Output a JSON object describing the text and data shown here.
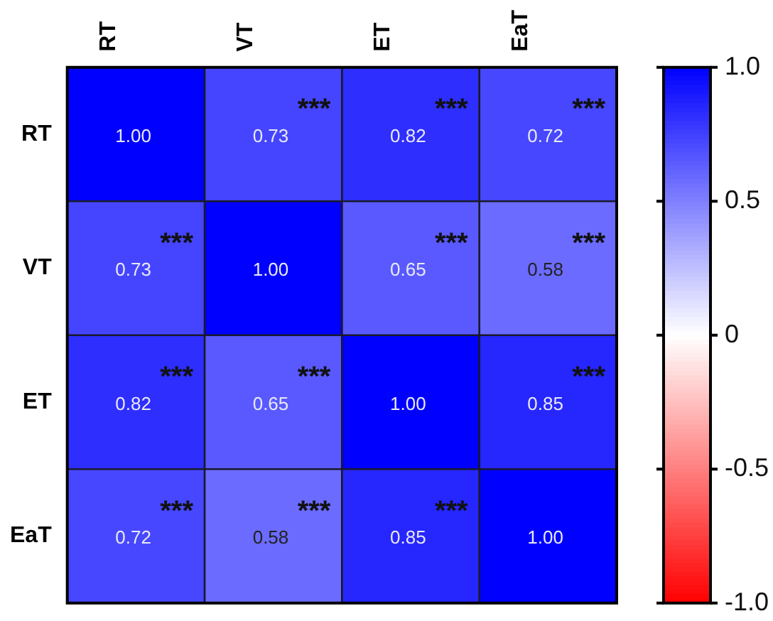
{
  "chart_data": {
    "type": "heatmap",
    "categories": [
      "RT",
      "VT",
      "ET",
      "EaT"
    ],
    "y_categories": [
      "RT",
      "VT",
      "ET",
      "EaT"
    ],
    "cells": [
      [
        1.0,
        0.73,
        0.82,
        0.72
      ],
      [
        0.73,
        1.0,
        0.65,
        0.58
      ],
      [
        0.82,
        0.65,
        1.0,
        0.85
      ],
      [
        0.72,
        0.58,
        0.85,
        1.0
      ]
    ],
    "cell_labels": [
      [
        "1.00",
        "***\n0.73",
        "***\n0.82",
        "***\n0.72"
      ],
      [
        "***\n0.73",
        "1.00",
        "***\n0.65",
        "***\n0.58"
      ],
      [
        "***\n0.82",
        "***\n0.65",
        "1.00",
        "***\n0.85"
      ],
      [
        "***\n0.72",
        "***\n0.58",
        "***\n0.85",
        "1.00"
      ]
    ],
    "clim": [
      -1,
      1
    ],
    "cticks": [
      {
        "value": 1,
        "label": "1.0"
      },
      {
        "value": 0.5,
        "label": "0.5"
      },
      0,
      {
        "value": -0.5,
        "label": "-0.5"
      },
      {
        "value": -1,
        "label": "-1.0"
      }
    ]
  }
}
